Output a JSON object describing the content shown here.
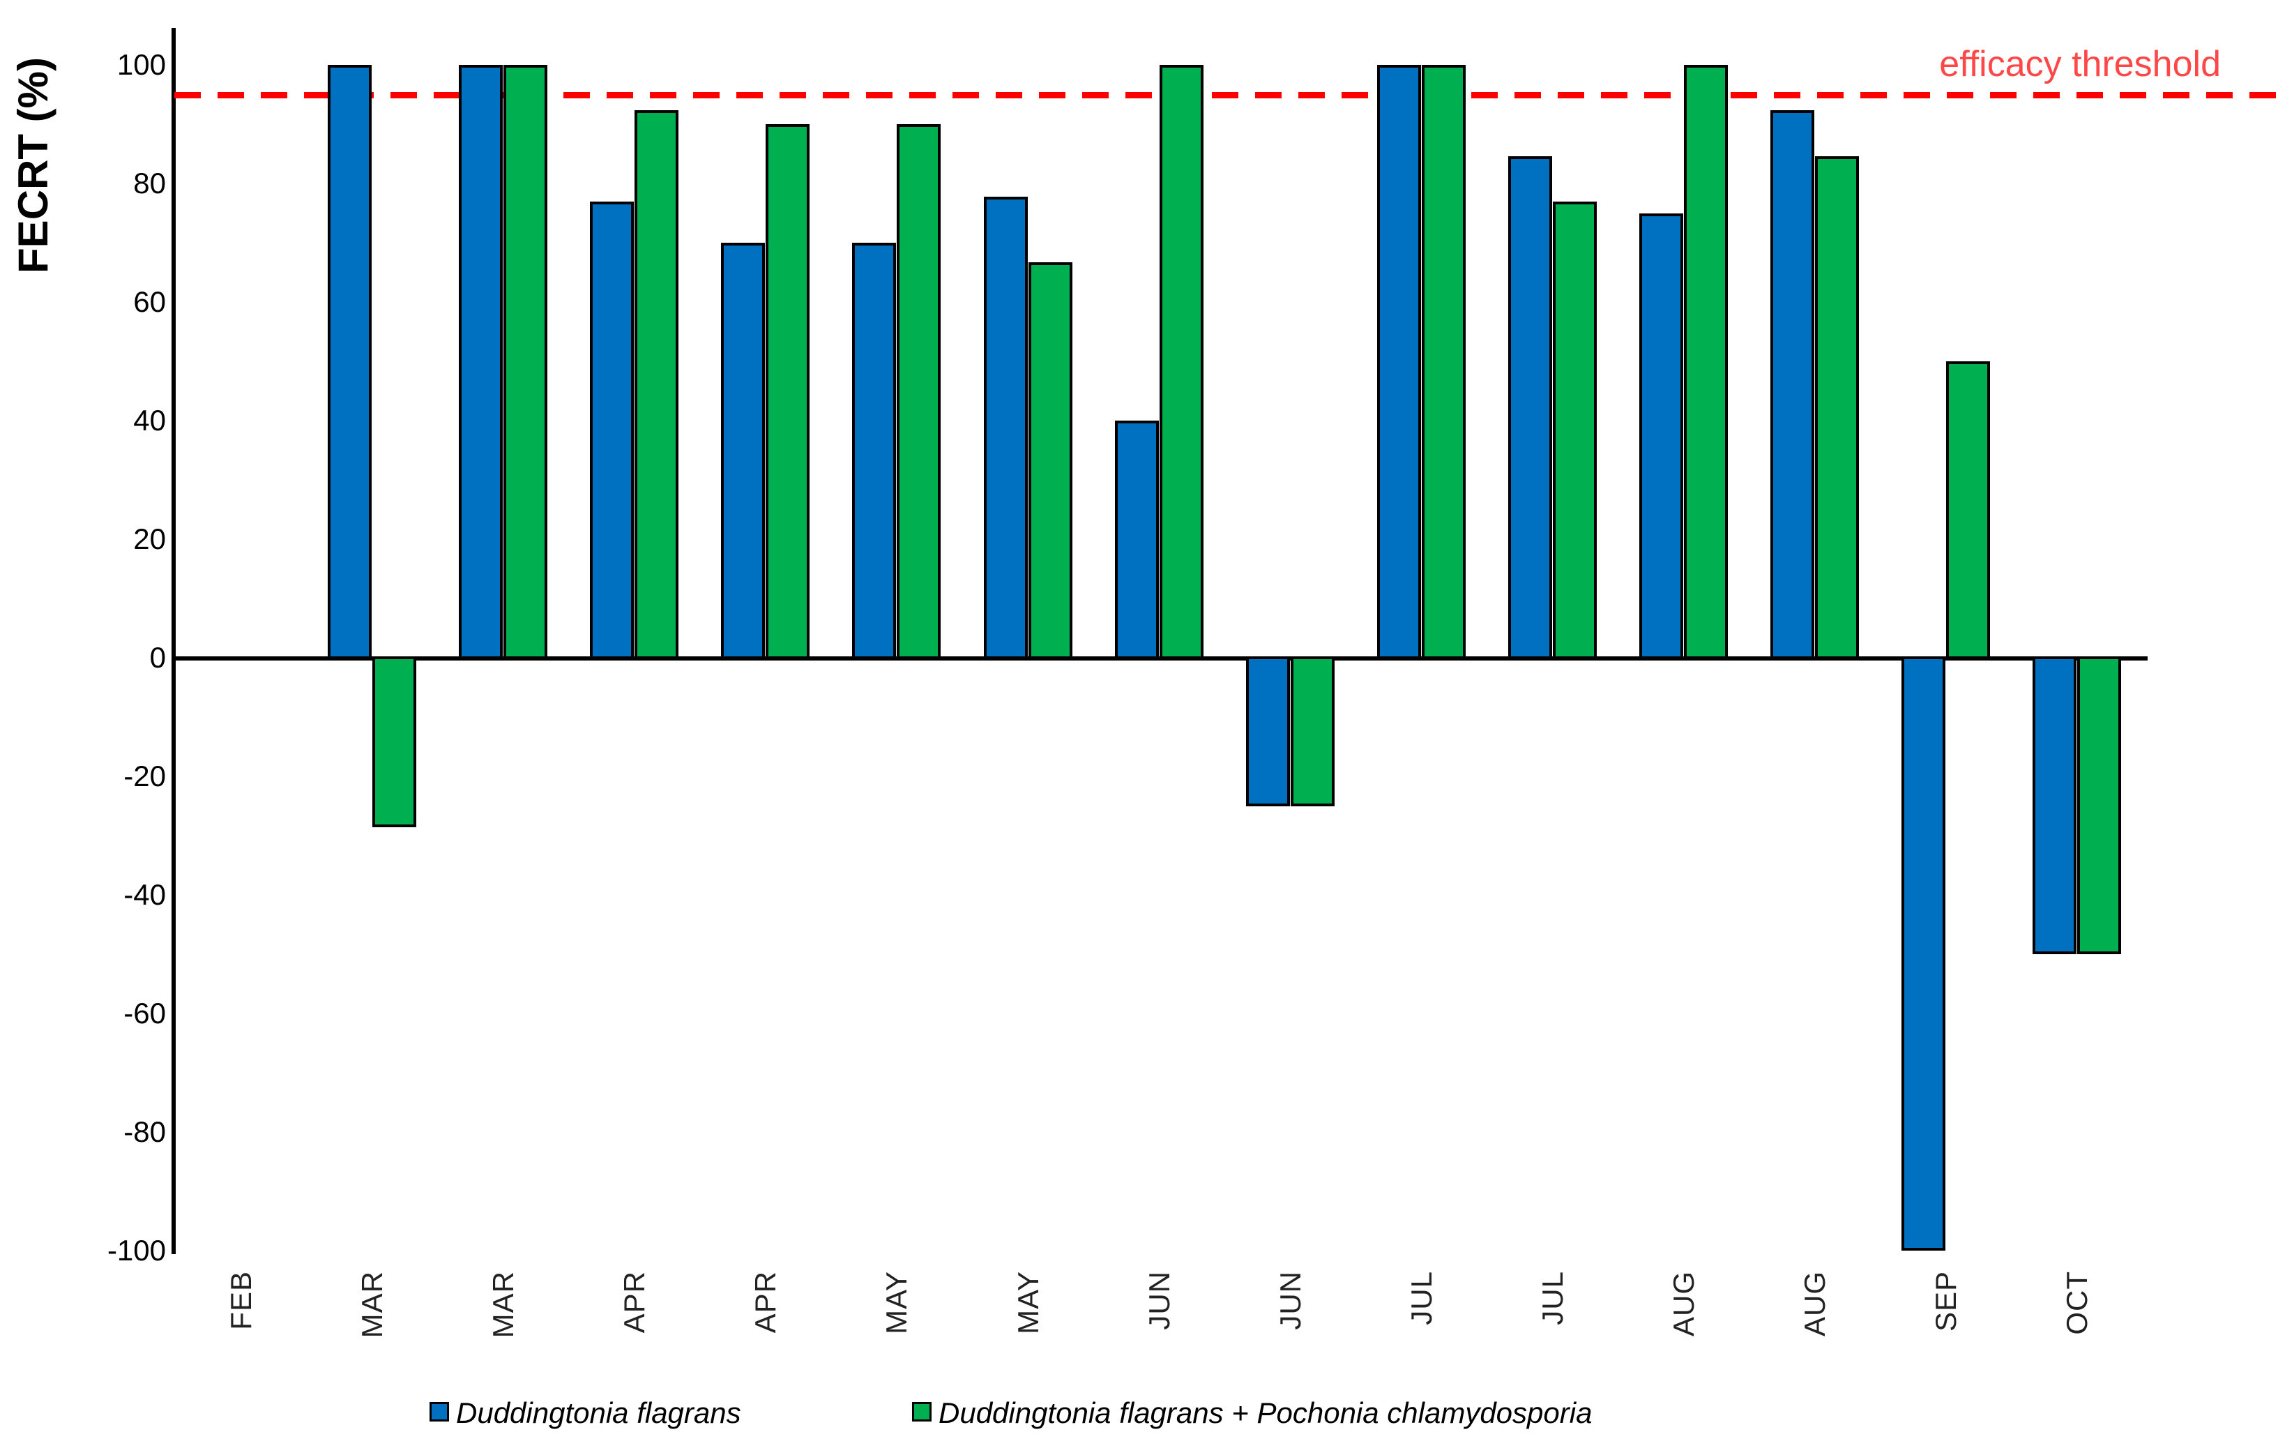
{
  "chart_data": {
    "type": "bar",
    "title": "",
    "ylabel": "FECRT (%)",
    "xlabel": "",
    "ylim": [
      -100,
      100
    ],
    "ytick_step": 20,
    "grid": false,
    "legend_position": "bottom",
    "bar_outline_color": "#000000",
    "categories": [
      "FEB",
      "MAR",
      "MAR",
      "APR",
      "APR",
      "MAY",
      "MAY",
      "JUN",
      "JUN",
      "JUL",
      "JUL",
      "AUG",
      "AUG",
      "SEP",
      "OCT"
    ],
    "series": [
      {
        "name": "Duddingtonia flagrans",
        "color": "#0070C0",
        "values": [
          null,
          100,
          100,
          76.9,
          70,
          70,
          77.8,
          40,
          -25,
          100,
          84.6,
          75,
          92.3,
          -100,
          -50
        ]
      },
      {
        "name": "Duddingtonia flagrans + Pochonia chlamydosporia",
        "color": "#00B050",
        "values": [
          null,
          -28.6,
          100,
          92.3,
          90,
          90,
          66.7,
          100,
          -25,
          100,
          76.9,
          100,
          84.6,
          50,
          -50
        ]
      }
    ],
    "threshold": {
      "label": "efficacy threshold",
      "value": 95,
      "line_color": "#FF0000",
      "label_color": "#FF4747",
      "style": "dashed"
    }
  }
}
